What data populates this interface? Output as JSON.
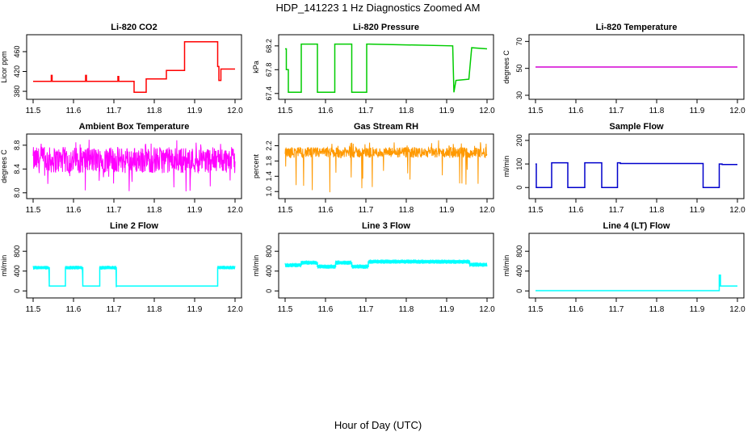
{
  "figure": {
    "title": "HDP_141223  1 Hz Diagnostics Zoomed AM",
    "xlabel": "Hour of Day (UTC)"
  },
  "chart_data": [
    {
      "type": "line",
      "title": "Li-820 CO2",
      "ylabel": "Licor ppm",
      "color": "#ff0000",
      "xlim": [
        11.5,
        12.0
      ],
      "ylim": [
        372,
        486
      ],
      "xticks": [
        "11.5",
        "11.6",
        "11.7",
        "11.8",
        "11.9",
        "12.0"
      ],
      "yticks": [
        "380",
        "420",
        "460"
      ],
      "x": [
        11.5,
        11.545,
        11.545,
        11.547,
        11.547,
        11.63,
        11.63,
        11.632,
        11.632,
        11.71,
        11.71,
        11.712,
        11.712,
        11.75,
        11.75,
        11.76,
        11.76,
        11.78,
        11.78,
        11.81,
        11.81,
        11.83,
        11.83,
        11.875,
        11.875,
        11.92,
        11.92,
        11.957,
        11.957,
        11.96,
        11.96,
        11.965,
        11.965,
        12.0
      ],
      "y": [
        400,
        400,
        412,
        412,
        400,
        400,
        412,
        412,
        400,
        400,
        410,
        410,
        400,
        400,
        378,
        378,
        378,
        378,
        405,
        405,
        405,
        405,
        422,
        422,
        480,
        480,
        480,
        480,
        430,
        430,
        402,
        402,
        425,
        425
      ]
    },
    {
      "type": "line",
      "title": "Li-820 Pressure",
      "ylabel": "kPa",
      "color": "#00cc00",
      "xlim": [
        11.5,
        12.0
      ],
      "ylim": [
        67.37,
        68.32
      ],
      "xticks": [
        "11.5",
        "11.6",
        "11.7",
        "11.8",
        "11.9",
        "12.0"
      ],
      "yticks": [
        "67.4",
        "67.8",
        "68.2"
      ],
      "x": [
        11.5,
        11.503,
        11.503,
        11.508,
        11.508,
        11.54,
        11.54,
        11.547,
        11.547,
        11.58,
        11.58,
        11.587,
        11.587,
        11.623,
        11.623,
        11.63,
        11.63,
        11.665,
        11.665,
        11.672,
        11.672,
        11.702,
        11.702,
        11.709,
        11.709,
        11.915,
        11.915,
        11.918,
        11.918,
        11.923,
        11.923,
        11.955,
        11.955,
        11.962,
        11.962,
        12.0
      ],
      "y": [
        68.15,
        68.15,
        67.8,
        67.8,
        67.42,
        67.42,
        68.23,
        68.23,
        68.23,
        68.23,
        67.42,
        67.42,
        67.42,
        67.42,
        68.23,
        68.23,
        68.23,
        68.23,
        67.42,
        67.42,
        67.42,
        67.42,
        68.23,
        68.23,
        68.23,
        68.2,
        68.2,
        67.42,
        67.42,
        67.62,
        67.62,
        67.64,
        67.64,
        68.17,
        68.17,
        68.15
      ]
    },
    {
      "type": "line",
      "title": "Li-820 Temperature",
      "ylabel": "degrees C",
      "color": "#d400d4",
      "xlim": [
        11.5,
        12.0
      ],
      "ylim": [
        30,
        72
      ],
      "xticks": [
        "11.5",
        "11.6",
        "11.7",
        "11.8",
        "11.9",
        "12.0"
      ],
      "yticks": [
        "30",
        "50",
        "70"
      ],
      "x": [
        11.5,
        12.0
      ],
      "y": [
        51,
        51
      ]
    },
    {
      "type": "line",
      "title": "Ambient Box Temperature",
      "ylabel": "degrees C",
      "color": "#ff00ff",
      "xlim": [
        11.5,
        12.0
      ],
      "ylim": [
        7.97,
        8.92
      ],
      "xticks": [
        "11.5",
        "11.6",
        "11.7",
        "11.8",
        "11.9",
        "12.0"
      ],
      "yticks": [
        "8.0",
        "8.4",
        "8.8"
      ],
      "noise": {
        "center": 8.55,
        "amplitude": 0.22,
        "min": 8.0,
        "max": 8.9
      }
    },
    {
      "type": "line",
      "title": "Gas Stream RH",
      "ylabel": "percent",
      "color": "#ff9900",
      "xlim": [
        11.5,
        12.0
      ],
      "ylim": [
        0.92,
        2.4
      ],
      "xticks": [
        "11.5",
        "11.6",
        "11.7",
        "11.8",
        "11.9",
        "12.0"
      ],
      "yticks": [
        "1.0",
        "1.4",
        "1.8",
        "2.2"
      ],
      "noise": {
        "center": 2.02,
        "amplitude": 0.14,
        "min": 0.95,
        "max": 2.35
      }
    },
    {
      "type": "line",
      "title": "Sample Flow",
      "ylabel": "ml/min",
      "color": "#0000cc",
      "xlim": [
        11.5,
        12.0
      ],
      "ylim": [
        -30,
        210
      ],
      "xticks": [
        "11.5",
        "11.6",
        "11.7",
        "11.8",
        "11.9",
        "12.0"
      ],
      "yticks": [
        "0",
        "100",
        "200"
      ],
      "x": [
        11.5,
        11.502,
        11.502,
        11.509,
        11.509,
        11.54,
        11.54,
        11.547,
        11.547,
        11.58,
        11.58,
        11.587,
        11.587,
        11.622,
        11.622,
        11.629,
        11.629,
        11.664,
        11.664,
        11.671,
        11.671,
        11.703,
        11.703,
        11.71,
        11.71,
        11.915,
        11.915,
        11.922,
        11.922,
        11.955,
        11.955,
        11.962,
        11.962,
        12.0
      ],
      "y": [
        100,
        100,
        0,
        0,
        0,
        0,
        105,
        105,
        105,
        105,
        0,
        0,
        0,
        0,
        105,
        105,
        105,
        105,
        0,
        0,
        0,
        0,
        105,
        105,
        102,
        102,
        0,
        0,
        0,
        0,
        100,
        100,
        98,
        98
      ]
    },
    {
      "type": "line",
      "title": "Line 2 Flow",
      "ylabel": "ml/min",
      "color": "#00ffff",
      "xlim": [
        11.5,
        12.0
      ],
      "ylim": [
        -60,
        1080
      ],
      "xticks": [
        "11.5",
        "11.6",
        "11.7",
        "11.8",
        "11.9",
        "12.0"
      ],
      "yticks": [
        "0",
        "400",
        "800"
      ],
      "x": [
        11.5,
        11.54,
        11.54,
        11.58,
        11.58,
        11.623,
        11.623,
        11.665,
        11.665,
        11.706,
        11.706,
        11.957,
        11.957,
        12.0
      ],
      "y": [
        470,
        470,
        100,
        100,
        470,
        470,
        100,
        100,
        470,
        470,
        100,
        100,
        470,
        470
      ],
      "band": [
        {
          "from": 11.5,
          "to": 11.54
        },
        {
          "from": 11.58,
          "to": 11.623
        },
        {
          "from": 11.665,
          "to": 11.706
        },
        {
          "from": 11.957,
          "to": 12.0
        }
      ],
      "band_half": 40
    },
    {
      "type": "line",
      "title": "Line 3 Flow",
      "ylabel": "ml/min",
      "color": "#00ffff",
      "xlim": [
        11.5,
        12.0
      ],
      "ylim": [
        -60,
        1080
      ],
      "xticks": [
        "11.5",
        "11.6",
        "11.7",
        "11.8",
        "11.9",
        "12.0"
      ],
      "yticks": [
        "0",
        "400",
        "800"
      ],
      "x": [
        11.5,
        11.54,
        11.54,
        11.58,
        11.58,
        11.625,
        11.625,
        11.665,
        11.665,
        11.706,
        11.706,
        11.957,
        11.957,
        12.0
      ],
      "y": [
        520,
        520,
        570,
        570,
        490,
        490,
        570,
        570,
        490,
        490,
        590,
        590,
        530,
        530
      ],
      "band": [
        {
          "from": 11.5,
          "to": 12.0
        }
      ],
      "band_half": 45
    },
    {
      "type": "line",
      "title": "Line 4 (LT) Flow",
      "ylabel": "ml/min",
      "color": "#00ffff",
      "xlim": [
        11.5,
        12.0
      ],
      "ylim": [
        -60,
        1080
      ],
      "xticks": [
        "11.5",
        "11.6",
        "11.7",
        "11.8",
        "11.9",
        "12.0"
      ],
      "yticks": [
        "0",
        "400",
        "800"
      ],
      "x": [
        11.5,
        11.955,
        11.955,
        11.958,
        11.958,
        11.962,
        11.962,
        12.0
      ],
      "y": [
        5,
        5,
        320,
        320,
        100,
        100,
        100,
        100
      ]
    }
  ]
}
